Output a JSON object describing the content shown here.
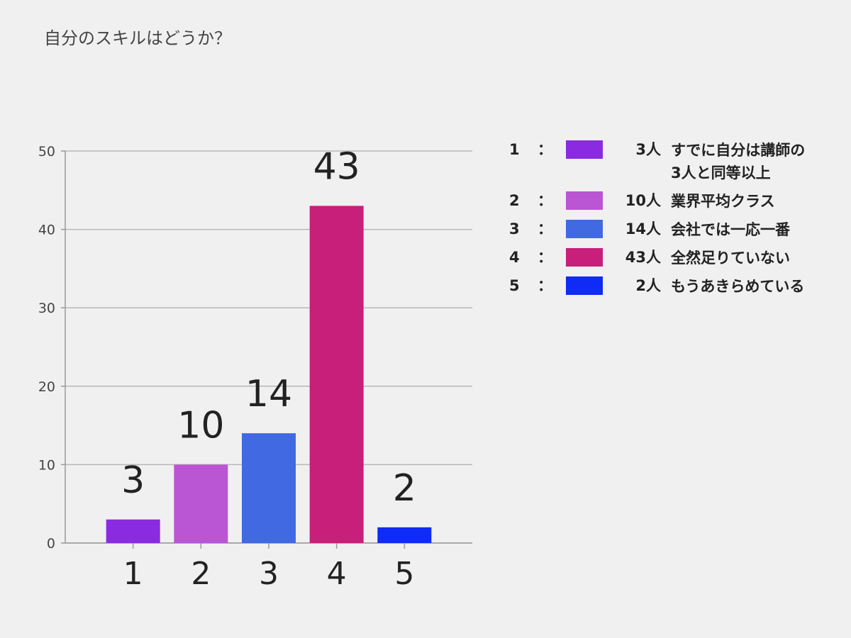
{
  "chart_data": {
    "type": "bar",
    "title": "自分のスキルはどうか？",
    "categories": [
      "1",
      "2",
      "3",
      "4",
      "5"
    ],
    "values": [
      3,
      10,
      14,
      43,
      2
    ],
    "data_labels": [
      "3",
      "10",
      "14",
      "43",
      "2"
    ],
    "colors": [
      "#8a2be2",
      "#ba55d3",
      "#4169e1",
      "#c71f7a",
      "#0f2bf5"
    ],
    "ylim": [
      0,
      50
    ],
    "yticks": [
      "0",
      "10",
      "20",
      "30",
      "40",
      "50"
    ],
    "grid": true,
    "xlabel": "",
    "ylabel": "",
    "legend_position": "right",
    "legend": [
      {
        "num": "1",
        "sep": "：",
        "count": "3人",
        "label": "すでに自分は講師の3人と同等以上"
      },
      {
        "num": "2",
        "sep": "：",
        "count": "10人",
        "label": "業界平均クラス"
      },
      {
        "num": "3",
        "sep": "：",
        "count": "14人",
        "label": "会社では一応一番"
      },
      {
        "num": "4",
        "sep": "：",
        "count": "43人",
        "label": "全然足りていない"
      },
      {
        "num": "5",
        "sep": "：",
        "count": "2人",
        "label": "もうあきらめている"
      }
    ]
  }
}
